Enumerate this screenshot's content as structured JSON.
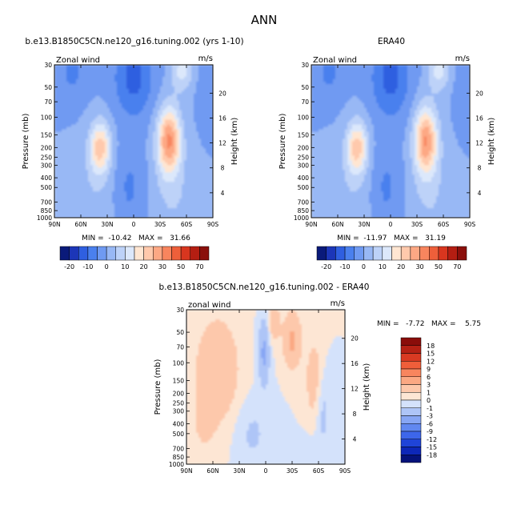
{
  "figure_title": "ANN",
  "colors": {
    "full_scale": [
      "#0a1a7a",
      "#1c36b8",
      "#2f5fe0",
      "#4a80ee",
      "#6f9af2",
      "#98b8f5",
      "#bdd2f8",
      "#dce8fb",
      "#ffe6d2",
      "#ffc9ac",
      "#fda884",
      "#f8855e",
      "#ee5f3a",
      "#d8361f",
      "#b41e12",
      "#8a0f0b"
    ],
    "diff_scale": [
      "#05127a",
      "#0d27b8",
      "#1f44d8",
      "#3d66ea",
      "#6188f0",
      "#87a6f4",
      "#aec5f7",
      "#d4e2fb",
      "#fde6d4",
      "#fdc8ab",
      "#fba883",
      "#f8855e",
      "#ef5e3a",
      "#d93a22",
      "#b52114",
      "#8a0d0a"
    ]
  },
  "chart_data": [
    {
      "type": "contour",
      "title": "b.e13.B1850C5CN.ne120_g16.tuning.002 (yrs 1-10)",
      "left_label": "Zonal wind",
      "right_label": "m/s",
      "xlabel": "",
      "ylabel": "Pressure (mb)",
      "ylabel_right": "Height (km)",
      "x_ticks": [
        "90N",
        "60N",
        "30N",
        "0",
        "30S",
        "60S",
        "90S"
      ],
      "y_ticks": [
        "30",
        "50",
        "70",
        "100",
        "150",
        "200",
        "250",
        "300",
        "400",
        "500",
        "700",
        "850",
        "1000"
      ],
      "y_right_ticks": [
        "20",
        "16",
        "12",
        "8",
        "4"
      ],
      "ylim": [
        1000,
        30
      ],
      "min_max": "MIN =  -10.42   MAX =   31.66",
      "min": -10.42,
      "max": 31.66,
      "colorbar_labels": [
        "-20",
        "-10",
        "0",
        "10",
        "20",
        "30",
        "50",
        "70"
      ],
      "features": [
        {
          "lat": -40,
          "pressure": 150,
          "value": 31.66
        },
        {
          "lat": 40,
          "pressure": 200,
          "value": 22
        },
        {
          "lat": 0,
          "pressure": 40,
          "value": -10.42
        }
      ]
    },
    {
      "type": "contour",
      "title": "ERA40",
      "left_label": "Zonal wind",
      "right_label": "m/s",
      "xlabel": "",
      "ylabel": "Pressure (mb)",
      "ylabel_right": "Height (km)",
      "x_ticks": [
        "90N",
        "60N",
        "30N",
        "0",
        "30S",
        "60S",
        "90S"
      ],
      "y_ticks": [
        "30",
        "50",
        "70",
        "100",
        "150",
        "200",
        "250",
        "300",
        "400",
        "500",
        "700",
        "850",
        "1000"
      ],
      "y_right_ticks": [
        "20",
        "16",
        "12",
        "8",
        "4"
      ],
      "ylim": [
        1000,
        30
      ],
      "min_max": "MIN =  -11.97   MAX =   31.19",
      "min": -11.97,
      "max": 31.19,
      "colorbar_labels": [
        "-20",
        "-10",
        "0",
        "10",
        "20",
        "30",
        "50",
        "70"
      ],
      "features": [
        {
          "lat": -40,
          "pressure": 170,
          "value": 31.19
        },
        {
          "lat": 40,
          "pressure": 200,
          "value": 22
        },
        {
          "lat": 0,
          "pressure": 40,
          "value": -11.97
        }
      ]
    },
    {
      "type": "contour",
      "title": "b.e13.B1850C5CN.ne120_g16.tuning.002 - ERA40",
      "left_label": "zonal wind",
      "right_label": "m/s",
      "xlabel": "",
      "ylabel": "Pressure (mb)",
      "ylabel_right": "Height (km)",
      "x_ticks": [
        "90N",
        "60N",
        "30N",
        "0",
        "30S",
        "60S",
        "90S"
      ],
      "y_ticks": [
        "30",
        "50",
        "70",
        "100",
        "150",
        "200",
        "250",
        "300",
        "400",
        "500",
        "700",
        "850",
        "1000"
      ],
      "y_right_ticks": [
        "20",
        "16",
        "12",
        "8",
        "4"
      ],
      "ylim": [
        1000,
        30
      ],
      "min_max": "MIN =   -7.72   MAX =    5.75",
      "min": -7.72,
      "max": 5.75,
      "colorbar_labels": [
        "18",
        "15",
        "12",
        "9",
        "6",
        "3",
        "1",
        "0",
        "-1",
        "-3",
        "-6",
        "-9",
        "-12",
        "-15",
        "-18"
      ]
    }
  ]
}
